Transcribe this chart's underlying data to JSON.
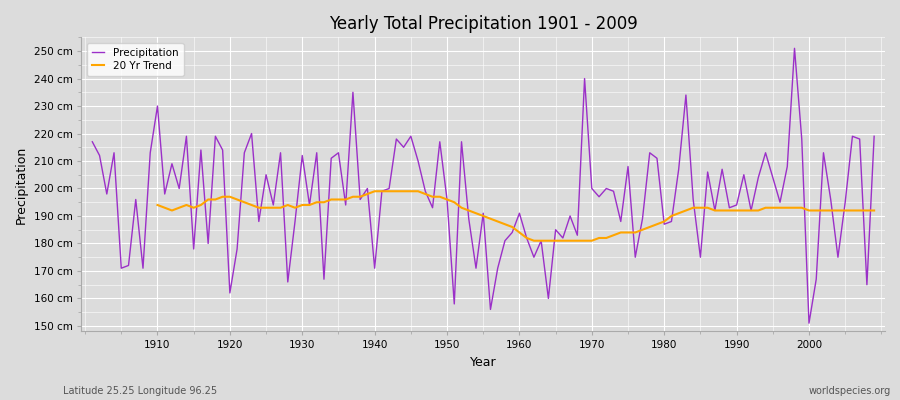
{
  "title": "Yearly Total Precipitation 1901 - 2009",
  "xlabel": "Year",
  "ylabel": "Precipitation",
  "ylim": [
    148,
    255
  ],
  "yticks": [
    150,
    160,
    170,
    180,
    190,
    200,
    210,
    220,
    230,
    240,
    250
  ],
  "ytick_labels": [
    "150 cm",
    "160 cm",
    "170 cm",
    "180 cm",
    "190 cm",
    "200 cm",
    "210 cm",
    "220 cm",
    "230 cm",
    "240 cm",
    "250 cm"
  ],
  "start_year": 1901,
  "end_year": 2009,
  "precipitation_color": "#9B30C8",
  "trend_color": "#FFA500",
  "background_color": "#DCDCDC",
  "plot_bg_color": "#DCDCDC",
  "grid_color": "#FFFFFF",
  "subtitle": "Latitude 25.25 Longitude 96.25",
  "watermark": "worldspecies.org",
  "precipitation": [
    217,
    212,
    198,
    213,
    171,
    172,
    196,
    171,
    213,
    230,
    198,
    209,
    200,
    219,
    178,
    214,
    180,
    219,
    214,
    162,
    178,
    213,
    220,
    188,
    205,
    194,
    213,
    166,
    188,
    212,
    194,
    213,
    167,
    211,
    213,
    194,
    235,
    196,
    200,
    171,
    199,
    200,
    218,
    215,
    219,
    210,
    199,
    193,
    217,
    196,
    158,
    217,
    189,
    171,
    191,
    156,
    171,
    181,
    184,
    191,
    182,
    175,
    181,
    160,
    185,
    182,
    190,
    183,
    240,
    200,
    197,
    200,
    199,
    188,
    208,
    175,
    189,
    213,
    211,
    187,
    188,
    207,
    234,
    196,
    175,
    206,
    192,
    207,
    193,
    194,
    205,
    192,
    204,
    213,
    204,
    195,
    208,
    251,
    218,
    151,
    167,
    213,
    196,
    175,
    195,
    219,
    218,
    165,
    219
  ],
  "trend": [
    null,
    null,
    null,
    null,
    null,
    null,
    null,
    null,
    null,
    194,
    193,
    192,
    193,
    194,
    193,
    194,
    196,
    196,
    197,
    197,
    196,
    195,
    194,
    193,
    193,
    193,
    193,
    194,
    193,
    194,
    194,
    195,
    195,
    196,
    196,
    196,
    197,
    197,
    198,
    199,
    199,
    199,
    199,
    199,
    199,
    199,
    198,
    197,
    197,
    196,
    195,
    193,
    192,
    191,
    190,
    189,
    188,
    187,
    186,
    184,
    182,
    181,
    181,
    181,
    181,
    181,
    181,
    181,
    181,
    181,
    182,
    182,
    183,
    184,
    184,
    184,
    185,
    186,
    187,
    188,
    190,
    191,
    192,
    193,
    193,
    193,
    192,
    192,
    192,
    192,
    192,
    192,
    192,
    193,
    193,
    193,
    193,
    193,
    193,
    192,
    192,
    192,
    192,
    192,
    192,
    192,
    192,
    192,
    192
  ]
}
